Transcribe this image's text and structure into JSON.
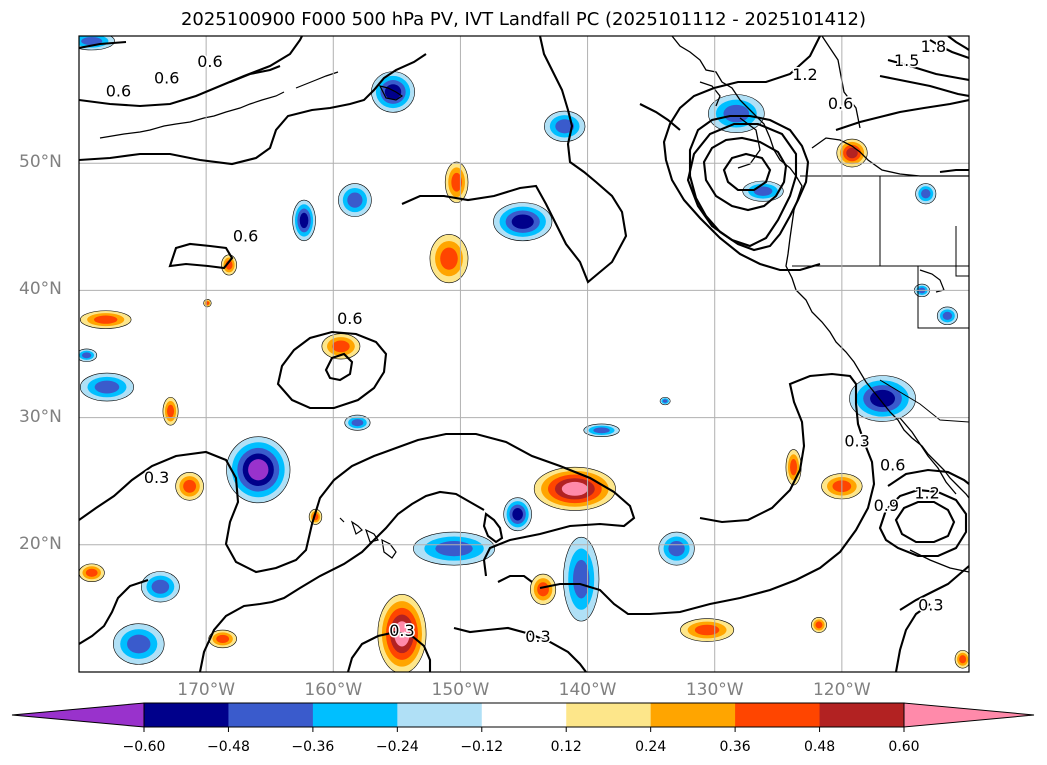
{
  "title": "2025100900 F000 500 hPa PV, IVT Landfall PC (2025101112 - 2025101412)",
  "map": {
    "lon_range": [
      -180,
      -110
    ],
    "lat_range": [
      10,
      60
    ],
    "lat_labels": [
      "50°N",
      "40°N",
      "30°N",
      "20°N"
    ],
    "lon_labels": [
      "170°W",
      "160°W",
      "150°W",
      "140°W",
      "130°W",
      "120°W"
    ],
    "grid": true,
    "contour_labels": [
      {
        "text": "0.6",
        "lon": -176.9,
        "lat": 55.6
      },
      {
        "text": "0.6",
        "lon": -173.1,
        "lat": 56.6
      },
      {
        "text": "0.6",
        "lon": -169.7,
        "lat": 57.9
      },
      {
        "text": "0.6",
        "lon": -166.9,
        "lat": 44.2
      },
      {
        "text": "0.6",
        "lon": -158.7,
        "lat": 37.7
      },
      {
        "text": "0.3",
        "lon": -173.9,
        "lat": 25.2
      },
      {
        "text": "0.3",
        "lon": -154.6,
        "lat": 13.2
      },
      {
        "text": "0.3",
        "lon": -143.9,
        "lat": 12.7
      },
      {
        "text": "0.6",
        "lon": -120.1,
        "lat": 54.6
      },
      {
        "text": "1.2",
        "lon": -122.9,
        "lat": 56.9
      },
      {
        "text": "1.5",
        "lon": -114.9,
        "lat": 58.0
      },
      {
        "text": "1.8",
        "lon": -112.8,
        "lat": 59.1
      },
      {
        "text": "0.3",
        "lon": -118.8,
        "lat": 28.1
      },
      {
        "text": "0.6",
        "lon": -116.0,
        "lat": 26.2
      },
      {
        "text": "0.9",
        "lon": -116.5,
        "lat": 23.0
      },
      {
        "text": "1.2",
        "lon": -113.3,
        "lat": 24.0
      },
      {
        "text": "0.3",
        "lon": -113.0,
        "lat": 15.2
      }
    ]
  },
  "colorbar": {
    "extend": "both",
    "ticks": [
      "−0.60",
      "−0.48",
      "−0.36",
      "−0.24",
      "−0.12",
      "0.12",
      "0.24",
      "0.36",
      "0.48",
      "0.60"
    ],
    "bins": [
      {
        "range": "< -0.60",
        "color": "#9932cc"
      },
      {
        "range": "-0.60 to -0.48",
        "color": "#00008b"
      },
      {
        "range": "-0.48 to -0.36",
        "color": "#3a5bcc"
      },
      {
        "range": "-0.36 to -0.24",
        "color": "#00bfff"
      },
      {
        "range": "-0.24 to -0.12",
        "color": "#b0e0f6"
      },
      {
        "range": "-0.12 to 0.12",
        "color": "#ffffff"
      },
      {
        "range": "0.12 to 0.24",
        "color": "#fde68a"
      },
      {
        "range": "0.24 to 0.36",
        "color": "#ffa500"
      },
      {
        "range": "0.36 to 0.48",
        "color": "#ff4500"
      },
      {
        "range": "0.48 to 0.60",
        "color": "#b22222"
      },
      {
        "range": "> 0.60",
        "color": "#ff8aaa"
      }
    ]
  },
  "anomaly_blobs": [
    {
      "lon": -179.0,
      "lat": 59.6,
      "rx": 1.8,
      "ry": 0.7,
      "sign": -1,
      "level": 3
    },
    {
      "lon": -155.3,
      "lat": 55.6,
      "rx": 1.7,
      "ry": 1.6,
      "sign": -1,
      "level": 4
    },
    {
      "lon": -150.3,
      "lat": 48.5,
      "rx": 0.9,
      "ry": 1.6,
      "sign": 1,
      "level": 3
    },
    {
      "lon": -141.8,
      "lat": 52.9,
      "rx": 1.6,
      "ry": 1.2,
      "sign": -1,
      "level": 3
    },
    {
      "lon": -128.3,
      "lat": 53.9,
      "rx": 2.2,
      "ry": 1.5,
      "sign": -1,
      "level": 3
    },
    {
      "lon": -119.2,
      "lat": 50.8,
      "rx": 1.2,
      "ry": 1.1,
      "sign": 1,
      "level": 4
    },
    {
      "lon": -162.3,
      "lat": 45.5,
      "rx": 0.9,
      "ry": 1.6,
      "sign": -1,
      "level": 4
    },
    {
      "lon": -158.3,
      "lat": 47.1,
      "rx": 1.3,
      "ry": 1.3,
      "sign": -1,
      "level": 3
    },
    {
      "lon": -145.1,
      "lat": 45.4,
      "rx": 2.3,
      "ry": 1.5,
      "sign": -1,
      "level": 4
    },
    {
      "lon": -150.9,
      "lat": 42.5,
      "rx": 1.5,
      "ry": 1.9,
      "sign": 1,
      "level": 3
    },
    {
      "lon": -126.2,
      "lat": 47.8,
      "rx": 1.6,
      "ry": 0.8,
      "sign": -1,
      "level": 3
    },
    {
      "lon": -113.4,
      "lat": 47.6,
      "rx": 0.8,
      "ry": 0.8,
      "sign": -1,
      "level": 3
    },
    {
      "lon": -168.2,
      "lat": 42.0,
      "rx": 0.6,
      "ry": 0.8,
      "sign": 1,
      "level": 3
    },
    {
      "lon": -177.9,
      "lat": 37.7,
      "rx": 2.0,
      "ry": 0.7,
      "sign": 1,
      "level": 3
    },
    {
      "lon": -179.4,
      "lat": 34.9,
      "rx": 0.8,
      "ry": 0.5,
      "sign": -1,
      "level": 3
    },
    {
      "lon": -177.8,
      "lat": 32.4,
      "rx": 2.1,
      "ry": 1.1,
      "sign": -1,
      "level": 3
    },
    {
      "lon": -159.4,
      "lat": 35.6,
      "rx": 1.5,
      "ry": 1.0,
      "sign": 1,
      "level": 3
    },
    {
      "lon": -158.1,
      "lat": 29.6,
      "rx": 1.0,
      "ry": 0.6,
      "sign": -1,
      "level": 3
    },
    {
      "lon": -172.8,
      "lat": 30.5,
      "rx": 0.6,
      "ry": 1.1,
      "sign": 1,
      "level": 3
    },
    {
      "lon": -165.9,
      "lat": 25.9,
      "rx": 2.5,
      "ry": 2.6,
      "sign": -1,
      "level": 5
    },
    {
      "lon": -171.3,
      "lat": 24.6,
      "rx": 1.1,
      "ry": 1.1,
      "sign": 1,
      "level": 3
    },
    {
      "lon": -141.0,
      "lat": 24.4,
      "rx": 3.2,
      "ry": 1.7,
      "sign": 1,
      "level": 5
    },
    {
      "lon": -138.9,
      "lat": 29.0,
      "rx": 1.4,
      "ry": 0.5,
      "sign": -1,
      "level": 3
    },
    {
      "lon": -145.5,
      "lat": 22.4,
      "rx": 1.1,
      "ry": 1.3,
      "sign": -1,
      "level": 4
    },
    {
      "lon": -150.5,
      "lat": 19.7,
      "rx": 3.2,
      "ry": 1.3,
      "sign": -1,
      "level": 3
    },
    {
      "lon": -140.5,
      "lat": 17.3,
      "rx": 1.4,
      "ry": 3.3,
      "sign": -1,
      "level": 3
    },
    {
      "lon": -143.5,
      "lat": 16.5,
      "rx": 1.0,
      "ry": 1.2,
      "sign": 1,
      "level": 3
    },
    {
      "lon": -154.6,
      "lat": 13.0,
      "rx": 1.9,
      "ry": 3.1,
      "sign": 1,
      "level": 5
    },
    {
      "lon": -168.7,
      "lat": 12.6,
      "rx": 1.1,
      "ry": 0.7,
      "sign": 1,
      "level": 3
    },
    {
      "lon": -175.3,
      "lat": 12.2,
      "rx": 2.0,
      "ry": 1.6,
      "sign": -1,
      "level": 3
    },
    {
      "lon": -173.6,
      "lat": 16.7,
      "rx": 1.5,
      "ry": 1.2,
      "sign": -1,
      "level": 3
    },
    {
      "lon": -179.0,
      "lat": 17.8,
      "rx": 1.0,
      "ry": 0.7,
      "sign": 1,
      "level": 3
    },
    {
      "lon": -130.6,
      "lat": 13.3,
      "rx": 2.1,
      "ry": 0.9,
      "sign": 1,
      "level": 3
    },
    {
      "lon": -133.0,
      "lat": 19.7,
      "rx": 1.4,
      "ry": 1.3,
      "sign": -1,
      "level": 3
    },
    {
      "lon": -123.8,
      "lat": 26.1,
      "rx": 0.6,
      "ry": 1.4,
      "sign": 1,
      "level": 3
    },
    {
      "lon": -120.0,
      "lat": 24.6,
      "rx": 1.6,
      "ry": 1.0,
      "sign": 1,
      "level": 3
    },
    {
      "lon": -116.8,
      "lat": 31.5,
      "rx": 2.6,
      "ry": 1.8,
      "sign": -1,
      "level": 4
    },
    {
      "lon": -111.7,
      "lat": 38.0,
      "rx": 0.8,
      "ry": 0.7,
      "sign": -1,
      "level": 3
    },
    {
      "lon": -113.7,
      "lat": 40.0,
      "rx": 0.6,
      "ry": 0.5,
      "sign": -1,
      "level": 3
    },
    {
      "lon": -110.5,
      "lat": 11.0,
      "rx": 0.6,
      "ry": 0.7,
      "sign": 1,
      "level": 3
    },
    {
      "lon": -121.8,
      "lat": 13.7,
      "rx": 0.6,
      "ry": 0.6,
      "sign": 1,
      "level": 3
    },
    {
      "lon": -161.4,
      "lat": 22.2,
      "rx": 0.5,
      "ry": 0.6,
      "sign": 1,
      "level": 3
    },
    {
      "lon": -169.9,
      "lat": 39.0,
      "rx": 0.3,
      "ry": 0.3,
      "sign": 1,
      "level": 3
    },
    {
      "lon": -133.9,
      "lat": 31.3,
      "rx": 0.4,
      "ry": 0.3,
      "sign": -1,
      "level": 3
    }
  ]
}
